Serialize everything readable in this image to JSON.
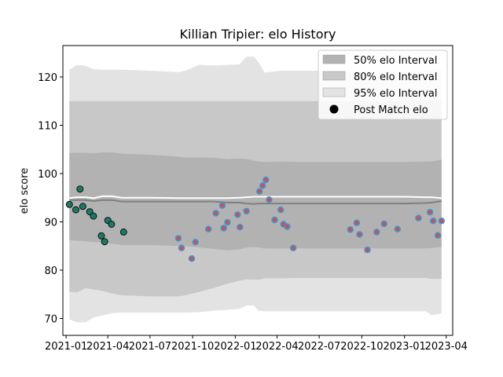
{
  "chart_data": {
    "type": "scatter",
    "title": "Killian Tripier: elo History",
    "xlabel": "",
    "ylabel": "elo score",
    "xlim": [
      "2020-12-25",
      "2023-04-15"
    ],
    "ylim": [
      66.5,
      126.5
    ],
    "x_ticks": [
      "2021-01",
      "2021-04",
      "2021-07",
      "2021-10",
      "2022-01",
      "2022-04",
      "2022-07",
      "2022-10",
      "2023-01",
      "2023-04"
    ],
    "y_ticks": [
      70,
      80,
      90,
      100,
      110,
      120
    ],
    "grid": false,
    "legend_position": "top-right",
    "legend": [
      {
        "label": "50% elo Interval",
        "kind": "band",
        "color": "#b2b2b2"
      },
      {
        "label": "80% elo Interval",
        "kind": "band",
        "color": "#c8c8c8"
      },
      {
        "label": "95% elo Interval",
        "kind": "band",
        "color": "#e3e3e3"
      },
      {
        "label": "Post Match elo",
        "kind": "marker",
        "color": "#000000"
      }
    ],
    "colors": {
      "band_50": "#b2b2b2",
      "band_80": "#c8c8c8",
      "band_95": "#e3e3e3",
      "mean_line": "#7f7f7f",
      "median_line": "#ffffff",
      "point_2021_h1": "#1b7a64",
      "point_later_fill": "#4a8fc9",
      "point_later_edge": "#e0483d",
      "point_edge": "#111111"
    },
    "intervals": {
      "dates": [
        "2021-01-08",
        "2021-01-25",
        "2021-02-12",
        "2021-03-01",
        "2021-03-20",
        "2021-04-10",
        "2021-05-01",
        "2021-07-01",
        "2021-09-01",
        "2021-09-15",
        "2021-10-15",
        "2021-11-15",
        "2021-12-15",
        "2022-01-10",
        "2022-01-25",
        "2022-02-10",
        "2022-02-20",
        "2022-03-05",
        "2022-04-10",
        "2022-05-15",
        "2022-07-01",
        "2022-09-01",
        "2022-10-01",
        "2022-11-15",
        "2023-01-01",
        "2023-02-15",
        "2023-03-01",
        "2023-03-22"
      ],
      "p95_upper": [
        121.5,
        122.5,
        122.3,
        121.6,
        121.5,
        121.5,
        121.5,
        121.3,
        121.0,
        121.3,
        122.5,
        122.4,
        122.5,
        122.6,
        124.2,
        124.2,
        123.0,
        120.9,
        121.3,
        121.3,
        121.3,
        121.3,
        121.3,
        121.3,
        121.3,
        121.3,
        121.5,
        121.5
      ],
      "p80_upper": [
        115.0,
        115.0,
        115.0,
        115.0,
        115.0,
        115.0,
        115.0,
        115.0,
        115.0,
        115.0,
        115.0,
        115.0,
        115.0,
        115.0,
        115.0,
        115.0,
        115.0,
        115.0,
        115.0,
        115.0,
        115.0,
        115.0,
        115.0,
        115.0,
        115.0,
        115.0,
        115.0,
        115.0
      ],
      "p50_upper": [
        104.3,
        104.3,
        104.3,
        104.2,
        104.4,
        104.4,
        104.1,
        103.9,
        103.5,
        103.3,
        103.3,
        103.3,
        103.0,
        103.1,
        103.0,
        102.7,
        102.5,
        102.4,
        102.5,
        102.4,
        102.4,
        102.4,
        102.4,
        102.4,
        102.4,
        102.5,
        102.5,
        102.9
      ],
      "median": [
        94.9,
        95.1,
        95.1,
        94.9,
        95.3,
        95.3,
        95.0,
        95.0,
        94.9,
        94.9,
        94.9,
        94.9,
        94.9,
        95.0,
        95.1,
        95.2,
        95.2,
        95.2,
        95.2,
        95.2,
        95.2,
        95.2,
        95.2,
        95.2,
        95.2,
        95.1,
        95.1,
        94.9
      ],
      "mean": [
        94.5,
        94.5,
        94.5,
        94.3,
        94.5,
        94.5,
        94.2,
        94.2,
        94.2,
        94.2,
        94.2,
        94.2,
        94.0,
        94.0,
        93.8,
        93.7,
        93.8,
        93.8,
        93.8,
        93.8,
        93.8,
        93.8,
        93.8,
        93.8,
        93.8,
        93.9,
        94.0,
        94.3
      ],
      "p50_lower": [
        86.2,
        86.1,
        86.0,
        85.8,
        85.8,
        85.5,
        85.2,
        85.2,
        85.0,
        85.0,
        84.7,
        84.4,
        84.1,
        84.3,
        84.7,
        84.8,
        84.7,
        84.5,
        84.5,
        84.5,
        84.5,
        84.5,
        84.5,
        84.5,
        84.5,
        84.5,
        84.6,
        84.8
      ],
      "p80_lower": [
        75.5,
        75.4,
        76.3,
        76.0,
        75.7,
        75.2,
        74.8,
        74.6,
        74.6,
        74.8,
        75.5,
        76.3,
        77.2,
        77.8,
        78.1,
        78.0,
        78.0,
        78.3,
        78.3,
        78.4,
        78.4,
        78.4,
        78.4,
        78.4,
        78.4,
        78.4,
        78.2,
        78.2
      ],
      "p95_lower": [
        69.8,
        69.2,
        69.2,
        70.2,
        70.6,
        71.1,
        71.2,
        71.2,
        71.2,
        71.2,
        71.3,
        71.6,
        71.8,
        72.0,
        72.7,
        72.7,
        71.6,
        71.5,
        71.5,
        71.5,
        71.5,
        71.5,
        71.5,
        71.5,
        71.5,
        71.5,
        70.7,
        71.0
      ]
    },
    "points_2021": [
      {
        "x": "2021-01-08",
        "y": 93.6
      },
      {
        "x": "2021-01-22",
        "y": 92.5
      },
      {
        "x": "2021-01-31",
        "y": 96.8
      },
      {
        "x": "2021-02-06",
        "y": 93.2
      },
      {
        "x": "2021-02-21",
        "y": 92.1
      },
      {
        "x": "2021-03-01",
        "y": 91.2
      },
      {
        "x": "2021-03-18",
        "y": 87.1
      },
      {
        "x": "2021-03-25",
        "y": 85.9
      },
      {
        "x": "2021-04-01",
        "y": 90.3
      },
      {
        "x": "2021-04-09",
        "y": 89.5
      },
      {
        "x": "2021-05-05",
        "y": 87.9
      }
    ],
    "points_later": [
      {
        "x": "2021-08-31",
        "y": 86.6
      },
      {
        "x": "2021-09-07",
        "y": 84.6
      },
      {
        "x": "2021-09-29",
        "y": 82.4
      },
      {
        "x": "2021-10-07",
        "y": 85.8
      },
      {
        "x": "2021-11-04",
        "y": 88.5
      },
      {
        "x": "2021-11-20",
        "y": 91.8
      },
      {
        "x": "2021-12-04",
        "y": 93.4
      },
      {
        "x": "2021-12-07",
        "y": 88.7
      },
      {
        "x": "2021-12-15",
        "y": 89.9
      },
      {
        "x": "2022-01-06",
        "y": 91.5
      },
      {
        "x": "2022-01-11",
        "y": 88.9
      },
      {
        "x": "2022-01-25",
        "y": 92.2
      },
      {
        "x": "2022-02-22",
        "y": 96.3
      },
      {
        "x": "2022-03-01",
        "y": 97.5
      },
      {
        "x": "2022-03-08",
        "y": 98.7
      },
      {
        "x": "2022-03-15",
        "y": 94.6
      },
      {
        "x": "2022-03-27",
        "y": 90.4
      },
      {
        "x": "2022-04-09",
        "y": 92.5
      },
      {
        "x": "2022-04-15",
        "y": 89.5
      },
      {
        "x": "2022-04-23",
        "y": 89.0
      },
      {
        "x": "2022-05-06",
        "y": 84.6
      },
      {
        "x": "2022-09-06",
        "y": 88.4
      },
      {
        "x": "2022-09-20",
        "y": 89.8
      },
      {
        "x": "2022-09-26",
        "y": 87.4
      },
      {
        "x": "2022-10-13",
        "y": 84.2
      },
      {
        "x": "2022-11-02",
        "y": 87.9
      },
      {
        "x": "2022-11-18",
        "y": 89.6
      },
      {
        "x": "2022-12-17",
        "y": 88.5
      },
      {
        "x": "2023-01-31",
        "y": 90.8
      },
      {
        "x": "2023-02-25",
        "y": 92.0
      },
      {
        "x": "2023-03-04",
        "y": 90.2
      },
      {
        "x": "2023-03-14",
        "y": 87.2
      },
      {
        "x": "2023-03-22",
        "y": 90.2
      }
    ]
  }
}
